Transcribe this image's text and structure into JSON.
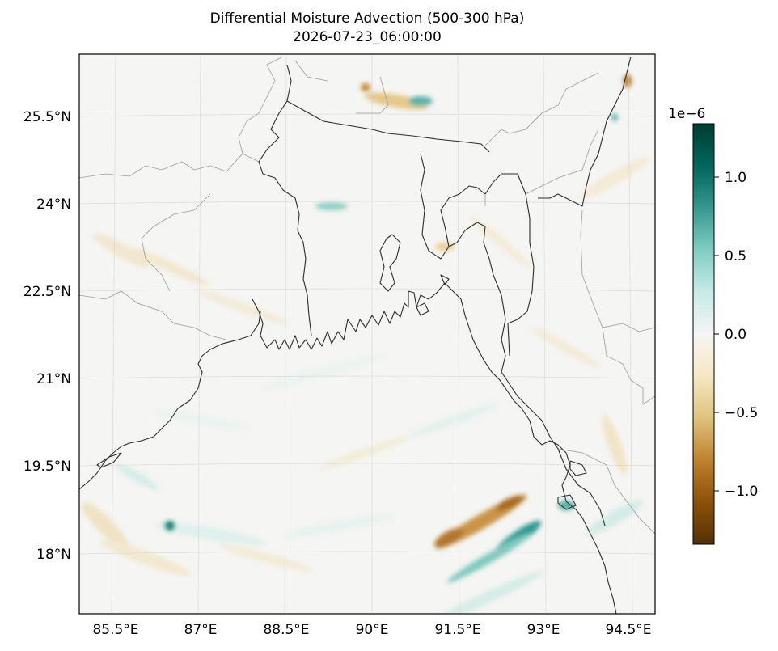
{
  "title": "Differential Moisture Advection (500-300 hPa)",
  "subtitle": "2026-07-23_06:00:00",
  "map": {
    "lon_range": [
      84.9,
      95.0
    ],
    "lat_range": [
      16.9,
      26.7
    ],
    "x_ticks": [
      "85.5°E",
      "87°E",
      "88.5°E",
      "90°E",
      "91.5°E",
      "93°E",
      "94.5°E"
    ],
    "y_ticks": [
      "25.5°N",
      "24°N",
      "22.5°N",
      "21°N",
      "19.5°N",
      "18°N"
    ],
    "gridlines": true
  },
  "colorbar": {
    "colormap": "BrBG",
    "colors": [
      "#543005",
      "#8c510a",
      "#bf812d",
      "#dfc27d",
      "#f6e8c3",
      "#f5f5f5",
      "#c7eae5",
      "#80cdc1",
      "#35978f",
      "#01665e",
      "#003c30"
    ],
    "range": [
      -1.35,
      1.35
    ],
    "scale_label": "1e−6",
    "ticks": [
      "1.0",
      "0.5",
      "0.0",
      "−0.5",
      "−1.0"
    ]
  }
}
